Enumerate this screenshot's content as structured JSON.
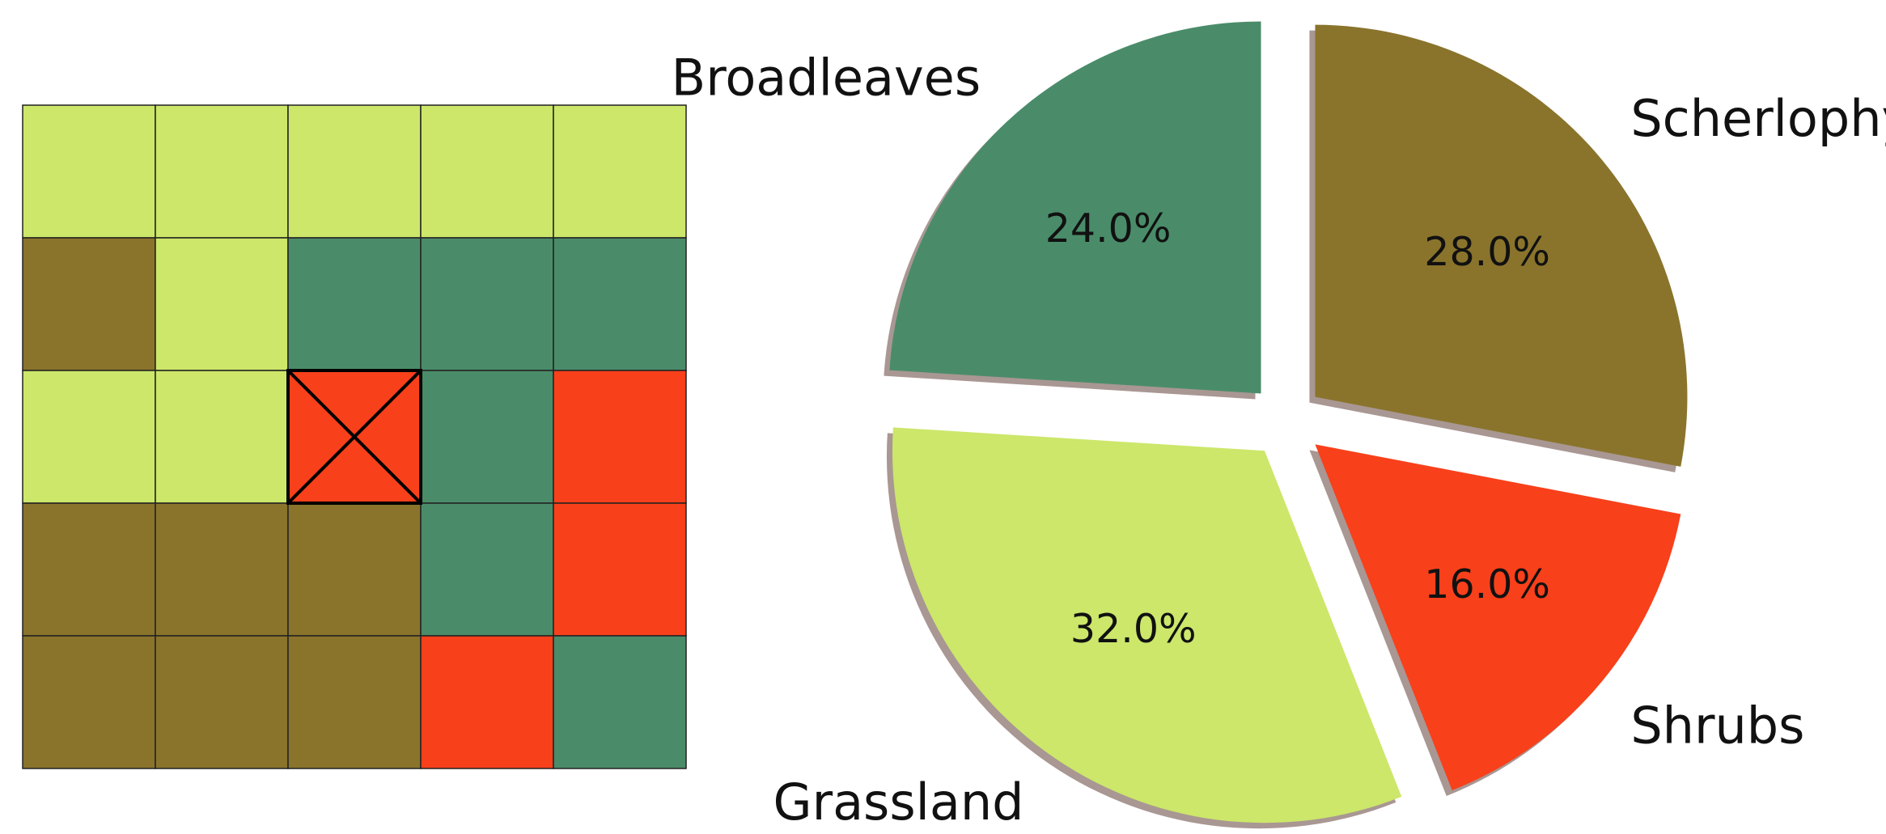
{
  "chart_data": [
    {
      "type": "heatmap",
      "grid": [
        [
          "Grassland",
          "Grassland",
          "Grassland",
          "Grassland",
          "Grassland"
        ],
        [
          "Scherlophyllus",
          "Grassland",
          "Broadleaves",
          "Broadleaves",
          "Broadleaves"
        ],
        [
          "Grassland",
          "Grassland",
          "Shrubs",
          "Broadleaves",
          "Shrubs"
        ],
        [
          "Scherlophyllus",
          "Scherlophyllus",
          "Scherlophyllus",
          "Broadleaves",
          "Shrubs"
        ],
        [
          "Scherlophyllus",
          "Scherlophyllus",
          "Scherlophyllus",
          "Shrubs",
          "Broadleaves"
        ]
      ],
      "marked_cell": {
        "row": 2,
        "col": 2
      },
      "grid_lines": true
    },
    {
      "type": "pie",
      "start_angle_deg": 90,
      "direction": "counterclockwise",
      "shadow": true,
      "slices": [
        {
          "label": "Broadleaves",
          "value": 24.0,
          "pct_label": "24.0%",
          "explode": true
        },
        {
          "label": "Grassland",
          "value": 32.0,
          "pct_label": "32.0%",
          "explode": true
        },
        {
          "label": "Shrubs",
          "value": 16.0,
          "pct_label": "16.0%",
          "explode": true
        },
        {
          "label": "Scherlophyllus",
          "value": 28.0,
          "pct_label": "28.0%",
          "explode": true
        }
      ]
    }
  ],
  "colors": {
    "Grassland": "#cce76a",
    "Broadleaves": "#4a8c69",
    "Scherlophyllus": "#8a742c",
    "Shrubs": "#f8401b",
    "grid_line": "#222222",
    "shadow": "#9a8580",
    "background": "#ffffff"
  }
}
